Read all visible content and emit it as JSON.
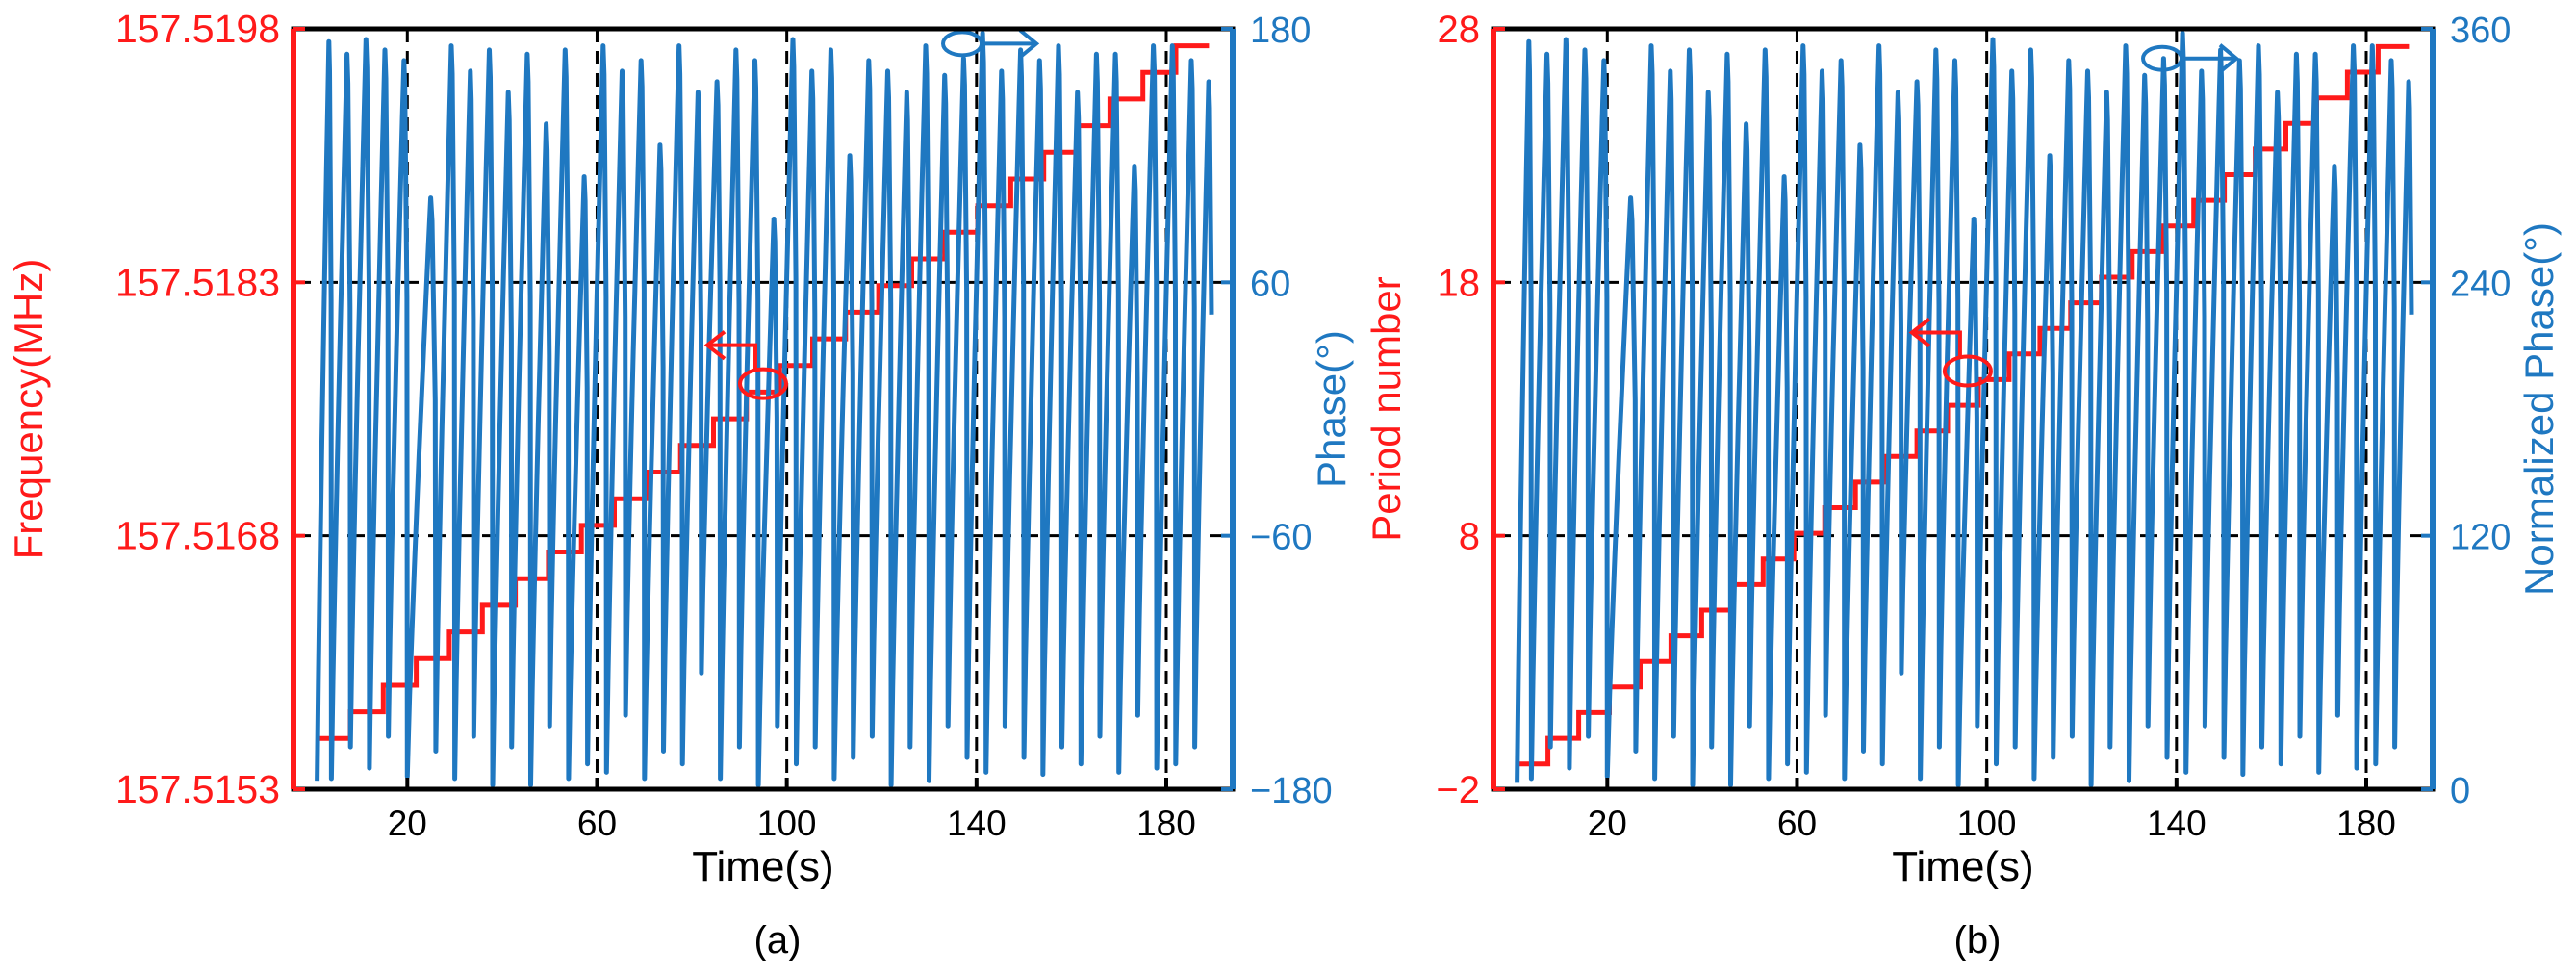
{
  "colors": {
    "left_axis": "#ff1a1a",
    "right_axis": "#1f78c1",
    "frame": "#000000",
    "grid": "#000000"
  },
  "chart_data": [
    {
      "id": "a",
      "type": "line",
      "caption": "(a)",
      "xlabel": "Time(s)",
      "ylabel_left": "Frequency(MHz)",
      "ylabel_right": "Phase(°)",
      "xlim": [
        -4,
        194
      ],
      "xticks": [
        20,
        60,
        100,
        140,
        180
      ],
      "xtick_labels": [
        "20",
        "60",
        "100",
        "140",
        "180"
      ],
      "ylim_left": [
        157.5153,
        157.5198
      ],
      "yticks_left": [
        157.5153,
        157.5168,
        157.5183,
        157.5198
      ],
      "ytick_labels_left": [
        "157.5153",
        "157.5168",
        "157.5183",
        "157.5198"
      ],
      "ylim_right": [
        -180,
        180
      ],
      "yticks_right": [
        -180,
        -60,
        60,
        180
      ],
      "ytick_labels_right": [
        "−180",
        "−60",
        "60",
        "180"
      ],
      "vgrid": [
        20,
        60,
        100,
        140,
        180
      ],
      "hgrid_right": [
        -60,
        60
      ],
      "series": [
        {
          "name": "Frequency",
          "axis": "left",
          "style": "staircase",
          "x_start": 1,
          "x_end": 189,
          "steps": 27,
          "y_start": 157.5156,
          "y_end": 157.5197
        },
        {
          "name": "Phase",
          "axis": "right",
          "style": "sawtooth",
          "cycles": [
            [
              1,
              -176,
              174
            ],
            [
              4,
              -175,
              168
            ],
            [
              8,
              -160,
              175
            ],
            [
              12,
              -170,
              170
            ],
            [
              16,
              -155,
              165
            ],
            [
              20,
              -174,
              100
            ],
            [
              26,
              -162,
              172
            ],
            [
              30,
              -175,
              160
            ],
            [
              34,
              -155,
              170
            ],
            [
              38,
              -178,
              150
            ],
            [
              42,
              -160,
              168
            ],
            [
              46,
              -178,
              135
            ],
            [
              50,
              -150,
              170
            ],
            [
              54,
              -175,
              110
            ],
            [
              58,
              -168,
              172
            ],
            [
              62,
              -172,
              160
            ],
            [
              66,
              -145,
              165
            ],
            [
              70,
              -175,
              125
            ],
            [
              74,
              -162,
              172
            ],
            [
              78,
              -168,
              150
            ],
            [
              82,
              -125,
              155
            ],
            [
              86,
              -175,
              170
            ],
            [
              90,
              -160,
              165
            ],
            [
              94,
              -178,
              90
            ],
            [
              98,
              -150,
              175
            ],
            [
              102,
              -168,
              160
            ],
            [
              106,
              -160,
              170
            ],
            [
              110,
              -175,
              120
            ],
            [
              114,
              -165,
              165
            ],
            [
              118,
              -155,
              160
            ],
            [
              122,
              -178,
              150
            ],
            [
              126,
              -160,
              172
            ],
            [
              130,
              -176,
              158
            ],
            [
              134,
              -150,
              166
            ],
            [
              138,
              -165,
              178
            ],
            [
              142,
              -172,
              160
            ],
            [
              146,
              -150,
              170
            ],
            [
              150,
              -165,
              165
            ],
            [
              154,
              -173,
              172
            ],
            [
              158,
              -160,
              150
            ],
            [
              162,
              -168,
              168
            ],
            [
              166,
              -155,
              168
            ],
            [
              170,
              -172,
              115
            ],
            [
              174,
              -145,
              172
            ],
            [
              178,
              -170,
              172
            ],
            [
              182,
              -168,
              165
            ],
            [
              186,
              -160,
              155
            ]
          ]
        }
      ],
      "annotations": [
        {
          "kind": "left-arrow-ellipse",
          "x": 95,
          "y_axis": "left",
          "y": 157.5177
        },
        {
          "kind": "right-arrow-ellipse",
          "x": 137,
          "y_axis": "right",
          "y": 173
        }
      ]
    },
    {
      "id": "b",
      "type": "line",
      "caption": "(b)",
      "xlabel": "Time(s)",
      "ylabel_left": "Period number",
      "ylabel_right": "Normalized Phase(°)",
      "xlim": [
        -4,
        194
      ],
      "xticks": [
        20,
        60,
        100,
        140,
        180
      ],
      "xtick_labels": [
        "20",
        "60",
        "100",
        "140",
        "180"
      ],
      "ylim_left": [
        -2,
        28
      ],
      "yticks_left": [
        -2,
        8,
        18,
        28
      ],
      "ytick_labels_left": [
        "−2",
        "8",
        "18",
        "28"
      ],
      "ylim_right": [
        0,
        360
      ],
      "yticks_right": [
        0,
        120,
        240,
        360
      ],
      "ytick_labels_right": [
        "0",
        "120",
        "240",
        "360"
      ],
      "vgrid": [
        20,
        60,
        100,
        140,
        180
      ],
      "hgrid_right": [
        120,
        240
      ],
      "series": [
        {
          "name": "Period number",
          "axis": "left",
          "style": "staircase",
          "x_start": 1,
          "x_end": 189,
          "steps": 29,
          "y_start": -1,
          "y_end": 27.3
        },
        {
          "name": "Normalized Phase",
          "axis": "right",
          "style": "sawtooth",
          "cycles": [
            [
              1,
              3,
              354
            ],
            [
              4,
              5,
              348
            ],
            [
              8,
              20,
              355
            ],
            [
              12,
              10,
              350
            ],
            [
              16,
              25,
              345
            ],
            [
              20,
              6,
              280
            ],
            [
              26,
              18,
              352
            ],
            [
              30,
              5,
              340
            ],
            [
              34,
              25,
              350
            ],
            [
              38,
              2,
              330
            ],
            [
              42,
              20,
              348
            ],
            [
              46,
              2,
              315
            ],
            [
              50,
              30,
              350
            ],
            [
              54,
              5,
              290
            ],
            [
              58,
              12,
              352
            ],
            [
              62,
              8,
              340
            ],
            [
              66,
              35,
              345
            ],
            [
              70,
              5,
              305
            ],
            [
              74,
              18,
              352
            ],
            [
              78,
              12,
              330
            ],
            [
              82,
              55,
              335
            ],
            [
              86,
              5,
              350
            ],
            [
              90,
              20,
              345
            ],
            [
              94,
              2,
              270
            ],
            [
              98,
              30,
              355
            ],
            [
              102,
              12,
              340
            ],
            [
              106,
              20,
              350
            ],
            [
              110,
              5,
              300
            ],
            [
              114,
              15,
              345
            ],
            [
              118,
              25,
              340
            ],
            [
              122,
              2,
              330
            ],
            [
              126,
              20,
              352
            ],
            [
              130,
              4,
              338
            ],
            [
              134,
              30,
              346
            ],
            [
              138,
              15,
              358
            ],
            [
              142,
              8,
              340
            ],
            [
              146,
              30,
              350
            ],
            [
              150,
              15,
              345
            ],
            [
              154,
              7,
              352
            ],
            [
              158,
              20,
              330
            ],
            [
              162,
              12,
              348
            ],
            [
              166,
              25,
              348
            ],
            [
              170,
              8,
              295
            ],
            [
              174,
              35,
              352
            ],
            [
              178,
              10,
              352
            ],
            [
              182,
              12,
              345
            ],
            [
              186,
              20,
              335
            ]
          ]
        }
      ],
      "annotations": [
        {
          "kind": "left-arrow-ellipse",
          "x": 96,
          "y_axis": "left",
          "y": 14.5
        },
        {
          "kind": "right-arrow-ellipse",
          "x": 137,
          "y_axis": "right",
          "y": 346
        }
      ]
    }
  ]
}
